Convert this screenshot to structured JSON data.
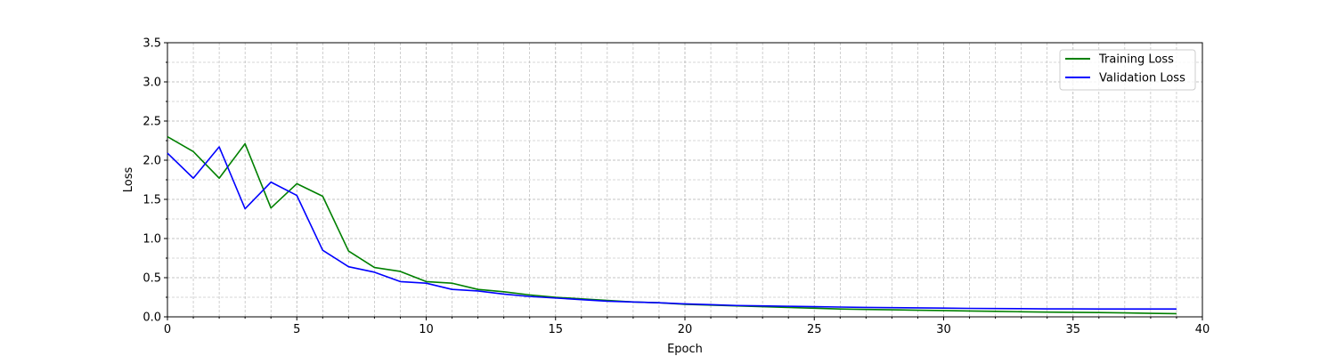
{
  "chart_data": {
    "type": "line",
    "title": "",
    "xlabel": "Epoch",
    "ylabel": "Loss",
    "xlim": [
      0,
      40
    ],
    "ylim": [
      0,
      3.5
    ],
    "xticks": [
      "0",
      "5",
      "10",
      "15",
      "20",
      "25",
      "30",
      "35",
      "40"
    ],
    "yticks": [
      "0.0",
      "0.5",
      "1.0",
      "1.5",
      "2.0",
      "2.5",
      "3.0",
      "3.5"
    ],
    "grid": true,
    "minor_grid": true,
    "legend_position": "top-right",
    "series": [
      {
        "name": "Training Loss",
        "color": "#008000",
        "x": [
          0,
          1,
          2,
          3,
          4,
          5,
          6,
          7,
          8,
          9,
          10,
          11,
          12,
          13,
          14,
          15,
          16,
          17,
          18,
          19,
          20,
          21,
          22,
          23,
          24,
          25,
          26,
          27,
          28,
          29,
          30,
          31,
          32,
          33,
          34,
          35,
          36,
          37,
          38,
          39
        ],
        "values": [
          2.3,
          2.11,
          1.77,
          2.21,
          1.39,
          1.7,
          1.54,
          0.84,
          0.63,
          0.58,
          0.45,
          0.43,
          0.35,
          0.32,
          0.28,
          0.25,
          0.23,
          0.21,
          0.19,
          0.18,
          0.16,
          0.15,
          0.14,
          0.13,
          0.12,
          0.11,
          0.1,
          0.095,
          0.09,
          0.085,
          0.08,
          0.075,
          0.07,
          0.065,
          0.06,
          0.058,
          0.055,
          0.05,
          0.045,
          0.04
        ]
      },
      {
        "name": "Validation Loss",
        "color": "#0000ff",
        "x": [
          0,
          1,
          2,
          3,
          4,
          5,
          6,
          7,
          8,
          9,
          10,
          11,
          12,
          13,
          14,
          15,
          16,
          17,
          18,
          19,
          20,
          21,
          22,
          23,
          24,
          25,
          26,
          27,
          28,
          29,
          30,
          31,
          32,
          33,
          34,
          35,
          36,
          37,
          38,
          39
        ],
        "values": [
          2.09,
          1.77,
          2.17,
          1.38,
          1.72,
          1.55,
          0.85,
          0.64,
          0.57,
          0.45,
          0.43,
          0.35,
          0.33,
          0.29,
          0.26,
          0.24,
          0.22,
          0.2,
          0.19,
          0.18,
          0.165,
          0.155,
          0.145,
          0.14,
          0.135,
          0.13,
          0.125,
          0.12,
          0.117,
          0.114,
          0.111,
          0.108,
          0.106,
          0.104,
          0.102,
          0.101,
          0.1,
          0.1,
          0.1,
          0.1
        ]
      }
    ]
  }
}
